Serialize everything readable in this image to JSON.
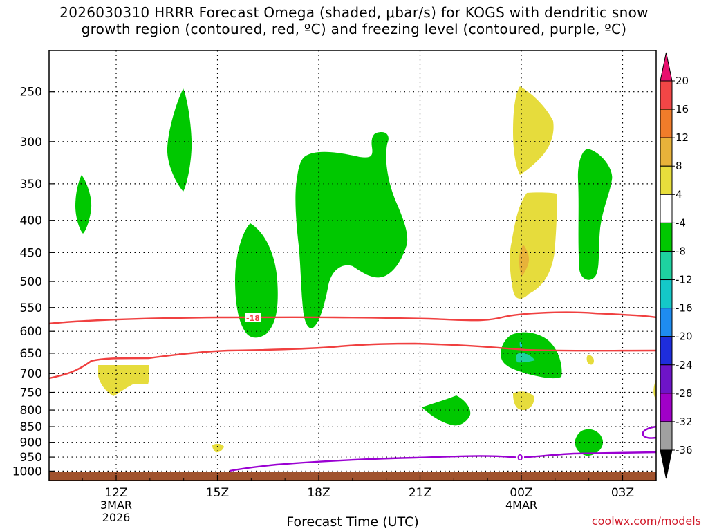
{
  "chart_data": {
    "type": "contour",
    "title_line1": "2026030310 HRRR Forecast Omega (shaded, μbar/s) for KOGS with dendritic snow",
    "title_line2": "growth region (contoured, red, ºC) and freezing level (contoured, purple, ºC)",
    "xlabel": "Forecast Time (UTC)",
    "credit": "coolwx.com/models",
    "x_ticks": [
      {
        "label": "12Z",
        "sub1": "3MAR",
        "sub2": "2026"
      },
      {
        "label": "15Z",
        "sub1": "",
        "sub2": ""
      },
      {
        "label": "18Z",
        "sub1": "",
        "sub2": ""
      },
      {
        "label": "21Z",
        "sub1": "",
        "sub2": ""
      },
      {
        "label": "00Z",
        "sub1": "4MAR",
        "sub2": ""
      },
      {
        "label": "03Z",
        "sub1": "",
        "sub2": ""
      }
    ],
    "y_ticks": [
      "250",
      "300",
      "350",
      "400",
      "450",
      "500",
      "550",
      "600",
      "650",
      "700",
      "750",
      "800",
      "850",
      "900",
      "950",
      "1000"
    ],
    "contour_labels": {
      "dendritic": "-18",
      "freezing": "0"
    },
    "colorbar": {
      "labels": [
        "20",
        "16",
        "12",
        "8",
        "4",
        "-4",
        "-8",
        "-12",
        "-16",
        "-20",
        "-24",
        "-28",
        "-32",
        "-36"
      ],
      "colors": [
        "#e8106e",
        "#f24646",
        "#f07c2a",
        "#e8b23a",
        "#e8de3c",
        "#ffffff",
        "#00c800",
        "#1ed2a0",
        "#14c8c8",
        "#1e8cf0",
        "#1e2ddc",
        "#6e14c8",
        "#a000c8",
        "#a0a0a0",
        "#000000"
      ]
    },
    "series_colors": {
      "dendritic": "#f04040",
      "freezing": "#9a00d2",
      "omega_neg": "#00c800",
      "omega_pos": "#e6dc3c",
      "omega_pos2": "#e8b23a",
      "omega_teal": "#1ed2a0",
      "terrain": "#a0522d"
    }
  }
}
